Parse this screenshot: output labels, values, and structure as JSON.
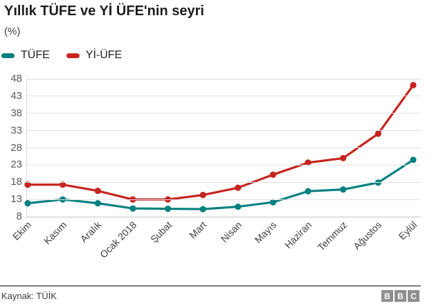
{
  "header": {
    "title": "Yıllık TÜFE ve Yİ ÜFE'nin seyri",
    "subtitle": "(%)"
  },
  "chart_data": {
    "type": "line",
    "categories": [
      "Ekim",
      "Kasım",
      "Aralık",
      "Ocak 2018",
      "Şubat",
      "Mart",
      "Nisan",
      "Mayıs",
      "Haziran",
      "Temmuz",
      "Ağustos",
      "Eylül"
    ],
    "series": [
      {
        "name": "TÜFE",
        "color": "#068080",
        "values": [
          11.9,
          13.0,
          11.9,
          10.4,
          10.3,
          10.2,
          10.9,
          12.2,
          15.4,
          15.9,
          17.9,
          24.5
        ]
      },
      {
        "name": "Yİ-ÜFE",
        "color": "#C6241E",
        "values": [
          17.3,
          17.3,
          15.5,
          13.0,
          13.0,
          14.3,
          16.4,
          20.2,
          23.7,
          25.0,
          32.1,
          46.2
        ]
      }
    ],
    "yticks": [
      8,
      13,
      18,
      23,
      28,
      33,
      38,
      43,
      48
    ],
    "ylim": [
      8,
      48
    ],
    "grid": true,
    "legend_position": "top-left",
    "title": "Yıllık TÜFE ve Yİ ÜFE'nin seyri",
    "xlabel": "",
    "ylabel": "(%)"
  },
  "footer": {
    "source": "Kaynak: TÜİK",
    "logo_letters": [
      "B",
      "B",
      "C"
    ]
  }
}
